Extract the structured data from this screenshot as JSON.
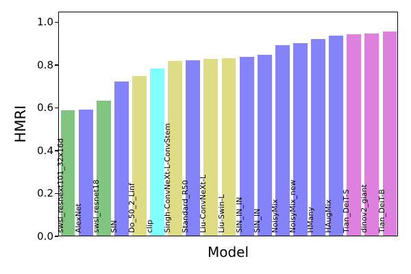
{
  "chart_data": {
    "type": "bar",
    "title": "",
    "xlabel": "Model",
    "ylabel": "HMRI",
    "ylim": [
      0,
      1.05
    ],
    "yticks": [
      0.0,
      0.2,
      0.4,
      0.6,
      0.8,
      1.0
    ],
    "ytick_labels": [
      "0.0",
      "0.2",
      "0.4",
      "0.6",
      "0.8",
      "1.0"
    ],
    "grid": false,
    "legend": "none",
    "bar_label_style": "category names rendered vertically (rotated 90°) at the base of each bar",
    "categories": [
      "swsl_resnext101_32x16d",
      "AlexNet",
      "swsl_resnet18",
      "SIN",
      "Do_50_2_Linf",
      "clip",
      "Singh-ConvNeXt-L-ConvStem",
      "Standard_R50",
      "Liu-ConvNeXt-L",
      "Liu-Swin-L",
      "SIN_IN_IN",
      "SIN_IN",
      "NoisyMix",
      "NoisyMix_new",
      "HMany",
      "HAugMix",
      "Tian_DeiT-S",
      "dinov2_giant",
      "Tian_DeiT-B"
    ],
    "values": [
      0.585,
      0.59,
      0.63,
      0.72,
      0.745,
      0.78,
      0.815,
      0.82,
      0.825,
      0.83,
      0.835,
      0.845,
      0.89,
      0.9,
      0.92,
      0.935,
      0.94,
      0.945,
      0.955
    ],
    "bar_colors": [
      "#7fc57f",
      "#8583fa",
      "#7fc57f",
      "#8583fa",
      "#dedc85",
      "#80ffff",
      "#dedc85",
      "#8583fa",
      "#dedc85",
      "#dedc85",
      "#8583fa",
      "#8583fa",
      "#8583fa",
      "#8583fa",
      "#8583fa",
      "#8583fa",
      "#de81de",
      "#de81de",
      "#de81de"
    ],
    "palette": {
      "green": "#7fc57f",
      "blue": "#8583fa",
      "yellow": "#dedc85",
      "cyan": "#80ffff",
      "magenta": "#de81de"
    },
    "axis_color": "#000000",
    "text_color": "#000000"
  }
}
